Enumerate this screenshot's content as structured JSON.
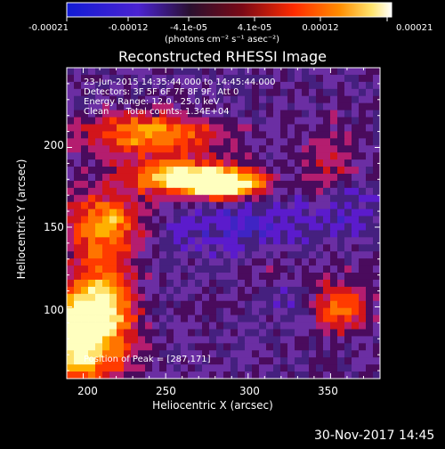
{
  "colorbar": {
    "ticks": [
      "-0.00021",
      "-0.00012",
      "-4.1e-05",
      "4.1e-05",
      "0.00012",
      "0.00021"
    ],
    "unit_label": "(photons cm⁻² s⁻¹ asec⁻²)",
    "min": -0.00021,
    "max": 0.00021
  },
  "plot": {
    "title": "Reconstructed RHESSI Image",
    "info_lines": [
      "23-Jun-2015 14:35:44.000 to 14:45:44.000",
      "Detectors: 3F 5F 6F 7F 8F 9F, Att 0",
      "Energy Range: 12.0 - 25.0 keV",
      "Clean      Total counts: 1.34E+04"
    ],
    "peak_label": "Position of Peak = [287,171]",
    "xlabel": "Heliocentric X (arcsec)",
    "ylabel": "Heliocentric Y (arcsec)",
    "xticks": [
      "200",
      "250",
      "300",
      "350"
    ],
    "yticks": [
      "200",
      "150",
      "100"
    ],
    "xlim": [
      190,
      380
    ],
    "ylim": [
      55,
      250
    ],
    "peak": [
      287,
      171
    ]
  },
  "footer": {
    "date": "30-Nov-2017 14:45"
  },
  "colors": {
    "background": "#000000",
    "text": "#ffffff",
    "colormap": [
      "#000000",
      "#1b20b6",
      "#5b1bcc",
      "#6b2ea3",
      "#b41d6f",
      "#ff3b00",
      "#ffb000",
      "#ffff90",
      "#ffffff"
    ]
  }
}
